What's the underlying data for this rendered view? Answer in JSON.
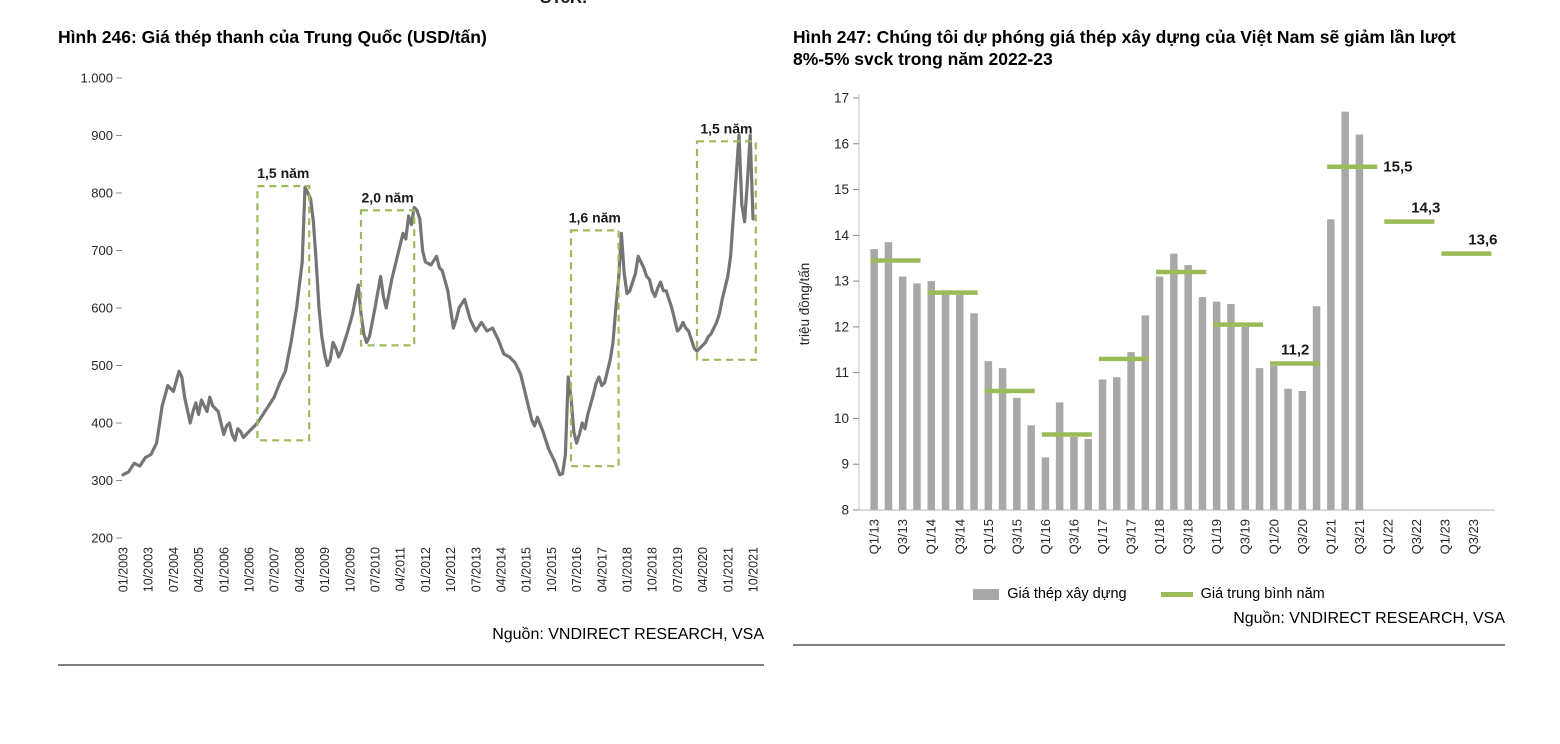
{
  "clipped_top_text": "ŠTcR.",
  "figures": [
    {
      "id": "246",
      "title": "Hình 246: Giá thép thanh của Trung Quốc (USD/tấn)",
      "source": "Nguồn: VNDIRECT RESEARCH, VSA"
    },
    {
      "id": "247",
      "title": "Hình 247: Chúng tôi dự phóng giá thép xây dựng của Việt Nam sẽ giảm lần lượt 8%-5% svck trong năm 2022-23",
      "source": "Nguồn: VNDIRECT RESEARCH, VSA"
    }
  ],
  "chart_data": [
    {
      "type": "line",
      "title": "Hình 246: Giá thép thanh của Trung Quốc (USD/tấn)",
      "unit": "USD/tấn",
      "ylim": [
        200,
        1000
      ],
      "ytick_values": [
        200,
        300,
        400,
        500,
        600,
        700,
        800,
        900,
        1000
      ],
      "ytick_labels": [
        "200",
        "300",
        "400",
        "500",
        "600",
        "700",
        "800",
        "900",
        "1.000"
      ],
      "x_tick_month_step": 9,
      "x_tick_labels": [
        "01/2003",
        "10/2003",
        "07/2004",
        "04/2005",
        "01/2006",
        "10/2006",
        "07/2007",
        "04/2008",
        "01/2009",
        "10/2009",
        "07/2010",
        "04/2011",
        "01/2012",
        "10/2012",
        "07/2013",
        "04/2014",
        "01/2015",
        "10/2015",
        "07/2016",
        "04/2017",
        "01/2018",
        "10/2018",
        "07/2019",
        "04/2020",
        "01/2021",
        "10/2021"
      ],
      "line_color": "#757575",
      "box_color": "#9bbb59",
      "grid": false,
      "series_points": [
        [
          0,
          310
        ],
        [
          2,
          315
        ],
        [
          4,
          330
        ],
        [
          6,
          325
        ],
        [
          8,
          340
        ],
        [
          10,
          345
        ],
        [
          12,
          365
        ],
        [
          14,
          430
        ],
        [
          16,
          465
        ],
        [
          18,
          455
        ],
        [
          20,
          490
        ],
        [
          21,
          480
        ],
        [
          22,
          445
        ],
        [
          24,
          400
        ],
        [
          25,
          420
        ],
        [
          26,
          435
        ],
        [
          27,
          415
        ],
        [
          28,
          440
        ],
        [
          30,
          420
        ],
        [
          31,
          445
        ],
        [
          32,
          430
        ],
        [
          34,
          420
        ],
        [
          36,
          380
        ],
        [
          37,
          395
        ],
        [
          38,
          400
        ],
        [
          39,
          380
        ],
        [
          40,
          370
        ],
        [
          41,
          390
        ],
        [
          42,
          385
        ],
        [
          43,
          375
        ],
        [
          44,
          380
        ],
        [
          45,
          385
        ],
        [
          46,
          390
        ],
        [
          48,
          400
        ],
        [
          50,
          415
        ],
        [
          52,
          430
        ],
        [
          54,
          445
        ],
        [
          56,
          470
        ],
        [
          58,
          490
        ],
        [
          60,
          540
        ],
        [
          62,
          600
        ],
        [
          64,
          680
        ],
        [
          65,
          810
        ],
        [
          66,
          800
        ],
        [
          67,
          790
        ],
        [
          68,
          750
        ],
        [
          69,
          680
        ],
        [
          70,
          600
        ],
        [
          71,
          550
        ],
        [
          72,
          520
        ],
        [
          73,
          500
        ],
        [
          74,
          510
        ],
        [
          75,
          540
        ],
        [
          76,
          530
        ],
        [
          77,
          515
        ],
        [
          78,
          525
        ],
        [
          80,
          555
        ],
        [
          82,
          590
        ],
        [
          84,
          640
        ],
        [
          85,
          590
        ],
        [
          86,
          555
        ],
        [
          87,
          540
        ],
        [
          88,
          550
        ],
        [
          90,
          600
        ],
        [
          92,
          655
        ],
        [
          93,
          620
        ],
        [
          94,
          600
        ],
        [
          95,
          625
        ],
        [
          96,
          650
        ],
        [
          98,
          690
        ],
        [
          100,
          730
        ],
        [
          101,
          720
        ],
        [
          102,
          760
        ],
        [
          103,
          745
        ],
        [
          104,
          775
        ],
        [
          105,
          770
        ],
        [
          106,
          755
        ],
        [
          107,
          700
        ],
        [
          108,
          680
        ],
        [
          110,
          675
        ],
        [
          112,
          690
        ],
        [
          113,
          670
        ],
        [
          114,
          665
        ],
        [
          116,
          630
        ],
        [
          118,
          565
        ],
        [
          119,
          580
        ],
        [
          120,
          600
        ],
        [
          122,
          615
        ],
        [
          124,
          580
        ],
        [
          126,
          560
        ],
        [
          128,
          575
        ],
        [
          130,
          560
        ],
        [
          132,
          565
        ],
        [
          134,
          545
        ],
        [
          136,
          520
        ],
        [
          138,
          515
        ],
        [
          140,
          505
        ],
        [
          142,
          485
        ],
        [
          144,
          445
        ],
        [
          146,
          405
        ],
        [
          147,
          395
        ],
        [
          148,
          410
        ],
        [
          150,
          385
        ],
        [
          152,
          355
        ],
        [
          154,
          335
        ],
        [
          156,
          310
        ],
        [
          157,
          312
        ],
        [
          158,
          345
        ],
        [
          159,
          480
        ],
        [
          160,
          445
        ],
        [
          161,
          385
        ],
        [
          162,
          365
        ],
        [
          163,
          380
        ],
        [
          164,
          400
        ],
        [
          165,
          390
        ],
        [
          166,
          415
        ],
        [
          168,
          450
        ],
        [
          169,
          470
        ],
        [
          170,
          480
        ],
        [
          171,
          465
        ],
        [
          172,
          470
        ],
        [
          174,
          510
        ],
        [
          175,
          540
        ],
        [
          176,
          600
        ],
        [
          177,
          650
        ],
        [
          178,
          730
        ],
        [
          179,
          660
        ],
        [
          180,
          625
        ],
        [
          181,
          630
        ],
        [
          182,
          645
        ],
        [
          183,
          660
        ],
        [
          184,
          690
        ],
        [
          185,
          680
        ],
        [
          186,
          670
        ],
        [
          187,
          655
        ],
        [
          188,
          650
        ],
        [
          189,
          630
        ],
        [
          190,
          620
        ],
        [
          191,
          635
        ],
        [
          192,
          645
        ],
        [
          193,
          630
        ],
        [
          194,
          630
        ],
        [
          195,
          615
        ],
        [
          196,
          600
        ],
        [
          197,
          580
        ],
        [
          198,
          560
        ],
        [
          199,
          565
        ],
        [
          200,
          575
        ],
        [
          201,
          565
        ],
        [
          202,
          560
        ],
        [
          203,
          545
        ],
        [
          204,
          530
        ],
        [
          205,
          525
        ],
        [
          206,
          530
        ],
        [
          207,
          535
        ],
        [
          208,
          540
        ],
        [
          209,
          550
        ],
        [
          210,
          555
        ],
        [
          211,
          565
        ],
        [
          212,
          575
        ],
        [
          213,
          590
        ],
        [
          214,
          615
        ],
        [
          215,
          635
        ],
        [
          216,
          655
        ],
        [
          217,
          690
        ],
        [
          218,
          760
        ],
        [
          219,
          830
        ],
        [
          220,
          900
        ],
        [
          221,
          780
        ],
        [
          222,
          750
        ],
        [
          223,
          820
        ],
        [
          224,
          900
        ],
        [
          225,
          755
        ]
      ],
      "annotation_boxes": [
        {
          "label": "1,5 năm",
          "month_start": 48,
          "month_end": 66.5,
          "value_low": 370,
          "value_high": 812
        },
        {
          "label": "2,0 năm",
          "month_start": 85,
          "month_end": 104,
          "value_low": 535,
          "value_high": 770
        },
        {
          "label": "1,6 năm",
          "month_start": 160,
          "month_end": 177,
          "value_low": 325,
          "value_high": 735
        },
        {
          "label": "1,5 năm",
          "month_start": 205,
          "month_end": 226,
          "value_low": 510,
          "value_high": 890
        }
      ]
    },
    {
      "type": "bar",
      "title": "Hình 247: Chúng tôi dự phóng giá thép xây dựng của Việt Nam sẽ giảm lần lượt 8%-5% svck trong năm 2022-23",
      "ylabel": "triệu đồng/tấn",
      "ylim": [
        8,
        17
      ],
      "ytick_values": [
        8,
        9,
        10,
        11,
        12,
        13,
        14,
        15,
        16,
        17
      ],
      "x_tick_labels": [
        "Q1/13",
        "Q3/13",
        "Q1/14",
        "Q3/14",
        "Q1/15",
        "Q3/15",
        "Q1/16",
        "Q3/16",
        "Q1/17",
        "Q3/17",
        "Q1/18",
        "Q3/18",
        "Q1/19",
        "Q3/19",
        "Q1/20",
        "Q3/20",
        "Q1/21",
        "Q3/21",
        "Q1/22",
        "Q3/22",
        "Q1/23",
        "Q3/23"
      ],
      "bar_color": "#a8a8a8",
      "avg_color": "#9bbb59",
      "grid": false,
      "legend": [
        "Giá thép xây dựng",
        "Giá trung bình năm"
      ],
      "legend_position": "bottom",
      "years": [
        {
          "year": 2013,
          "bars": [
            13.7,
            13.85,
            13.1,
            12.95
          ],
          "avg": 13.45
        },
        {
          "year": 2014,
          "bars": [
            13.0,
            12.8,
            12.7,
            12.3
          ],
          "avg": 12.75
        },
        {
          "year": 2015,
          "bars": [
            11.25,
            11.1,
            10.45,
            9.85
          ],
          "avg": 10.6
        },
        {
          "year": 2016,
          "bars": [
            9.15,
            10.35,
            9.6,
            9.55
          ],
          "avg": 9.65
        },
        {
          "year": 2017,
          "bars": [
            10.85,
            10.9,
            11.45,
            12.25
          ],
          "avg": 11.3
        },
        {
          "year": 2018,
          "bars": [
            13.1,
            13.6,
            13.35,
            12.65
          ],
          "avg": 13.2
        },
        {
          "year": 2019,
          "bars": [
            12.55,
            12.5,
            12.0,
            11.1
          ],
          "avg": 12.05
        },
        {
          "year": 2020,
          "bars": [
            11.15,
            10.65,
            10.6,
            12.45
          ],
          "avg": 11.2,
          "annotation": "11,2",
          "annotation_pos": "above"
        },
        {
          "year": 2021,
          "bars": [
            14.35,
            16.7,
            16.2
          ],
          "avg": 15.5,
          "annotation": "15,5",
          "annotation_pos": "right"
        },
        {
          "year": 2022,
          "bars": [],
          "avg": 14.3,
          "annotation": "14,3",
          "annotation_pos": "above-right"
        },
        {
          "year": 2023,
          "bars": [],
          "avg": 13.6,
          "annotation": "13,6",
          "annotation_pos": "above-right"
        }
      ]
    }
  ]
}
